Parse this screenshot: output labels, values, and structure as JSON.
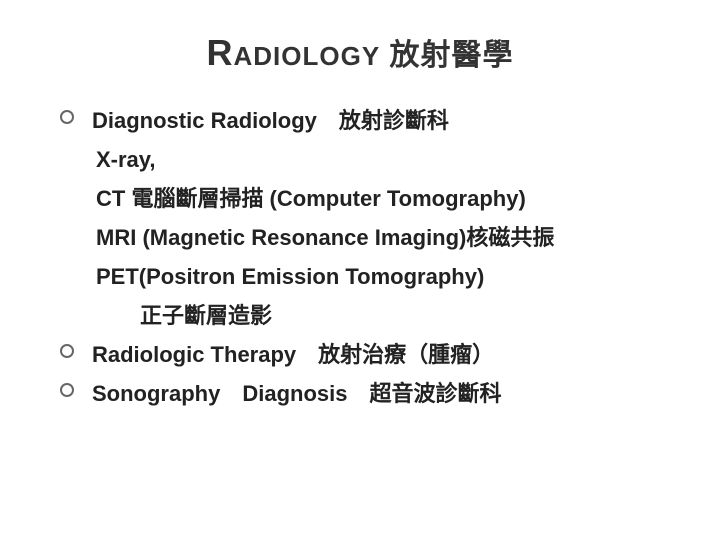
{
  "title": {
    "first_letter": "R",
    "small_caps": "ADIOLOGY",
    "chinese": "放射醫學",
    "color": "#333333",
    "fontsize_large": 36,
    "fontsize_small": 26,
    "fontsize_chinese": 30
  },
  "body": {
    "fontsize": 22,
    "color": "#222222",
    "bullet_border_color": "#666666"
  },
  "items": [
    {
      "bullet": true,
      "text": "Diagnostic Radiology　放射診斷科",
      "sublines": [
        " X-ray,",
        "CT 電腦斷層掃描 (Computer Tomography)",
        "MRI (Magnetic Resonance Imaging)核磁共振",
        "PET(Positron Emission Tomography)"
      ],
      "indent_line": "正子斷層造影"
    },
    {
      "bullet": true,
      "text": "Radiologic Therapy　放射治療（腫瘤）"
    },
    {
      "bullet": true,
      "text": " Sonography　Diagnosis　超音波診斷科"
    }
  ],
  "background_color": "#ffffff"
}
